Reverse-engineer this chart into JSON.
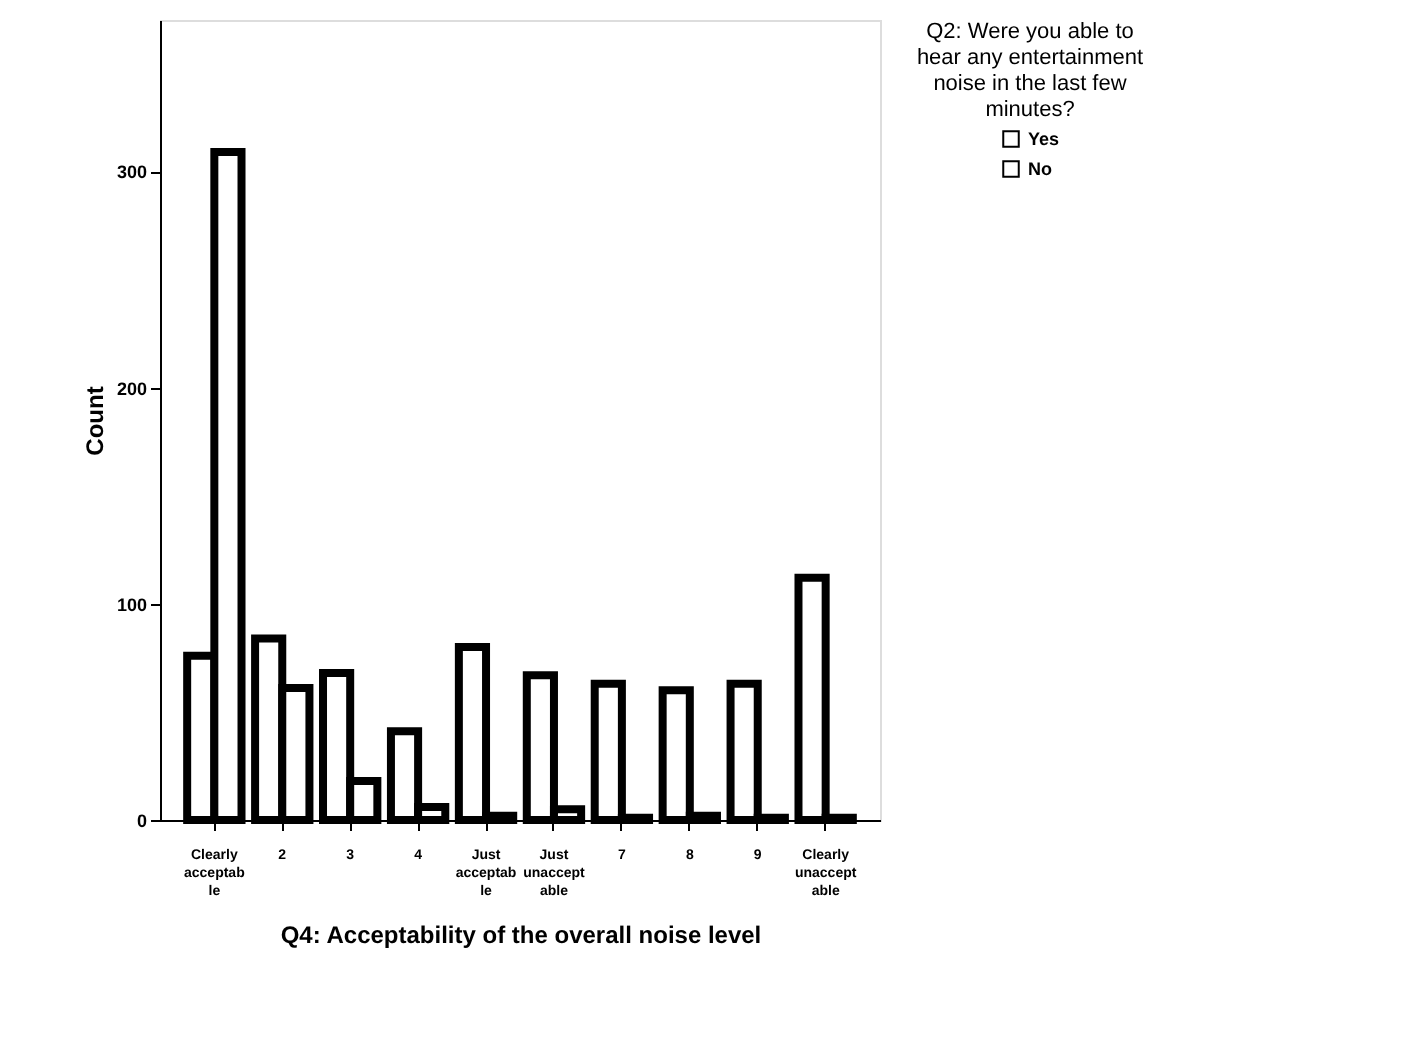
{
  "chart_data": {
    "type": "bar",
    "xlabel": "Q4: Acceptability of the overall noise level",
    "ylabel": "Count",
    "legend_title": "Q2: Were you able to hear any entertainment noise in the last few minutes?",
    "legend": "top right",
    "categories": [
      "Clearly acceptable",
      "2",
      "3",
      "4",
      "Just acceptable",
      "Just unacceptable",
      "7",
      "8",
      "9",
      "Clearly unacceptable"
    ],
    "series": [
      {
        "name": "Yes",
        "color": "#000000",
        "values": [
          76,
          84,
          68,
          41,
          80,
          67,
          63,
          60,
          63,
          112
        ]
      },
      {
        "name": "No",
        "color": "#000000",
        "values": [
          309,
          61,
          18,
          6,
          2,
          5,
          1,
          2,
          1,
          1
        ]
      }
    ],
    "ylim": [
      0,
      370
    ],
    "yticks": [
      0,
      100,
      200,
      300
    ],
    "grid": false
  }
}
